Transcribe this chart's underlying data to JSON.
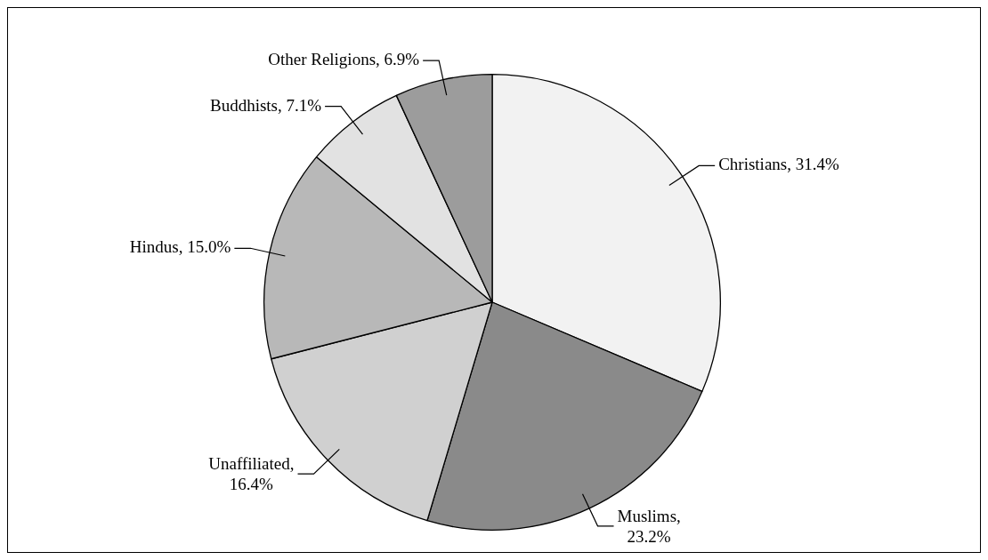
{
  "chart_data": {
    "type": "pie",
    "categories": [
      "Christians",
      "Muslims",
      "Unaffiliated",
      "Hindus",
      "Buddhists",
      "Other Religions"
    ],
    "values": [
      31.4,
      23.2,
      16.4,
      15.0,
      7.1,
      6.9
    ],
    "value_labels": [
      ", 31.4%",
      ",\n23.2%",
      ",\n16.4%",
      ", 15.0%",
      ", 7.1%",
      ", 6.9%"
    ],
    "colors": [
      "#f2f2f2",
      "#8a8a8a",
      "#d0d0d0",
      "#b8b8b8",
      "#e2e2e2",
      "#9c9c9c"
    ],
    "legend": false
  }
}
